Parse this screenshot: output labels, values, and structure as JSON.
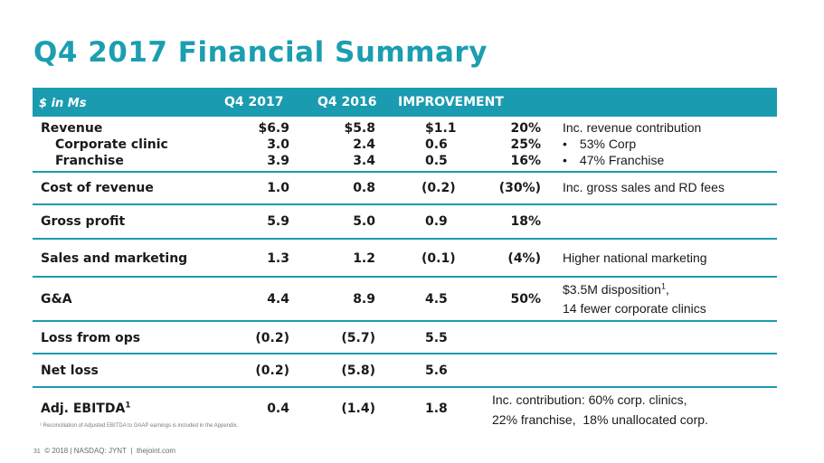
{
  "title": "Q4 2017 Financial Summary",
  "header": {
    "label": "$ in Ms",
    "q4_2017": "Q4 2017",
    "q4_2016": "Q4 2016",
    "improvement": "IMPROVEMENT"
  },
  "rows": {
    "revenue": {
      "label": "Revenue",
      "q17": "$6.9",
      "q16": "$5.8",
      "diff": "$1.1",
      "pct": "20%",
      "note": "Inc. revenue contribution"
    },
    "corporate": {
      "label": "Corporate clinic",
      "q17": "3.0",
      "q16": "2.4",
      "diff": "0.6",
      "pct": "25%",
      "note": "53% Corp"
    },
    "franchise": {
      "label": "Franchise",
      "q17": "3.9",
      "q16": "3.4",
      "diff": "0.5",
      "pct": "16%",
      "note": "47% Franchise"
    },
    "cost": {
      "label": "Cost of revenue",
      "q17": "1.0",
      "q16": "0.8",
      "diff": "(0.2)",
      "pct": "(30%)",
      "note": "Inc. gross sales and RD fees"
    },
    "gross": {
      "label": "Gross profit",
      "q17": "5.9",
      "q16": "5.0",
      "diff": "0.9",
      "pct": "18%"
    },
    "sales": {
      "label": "Sales and marketing",
      "q17": "1.3",
      "q16": "1.2",
      "diff": "(0.1)",
      "pct": "(4%)",
      "note": "Higher national marketing"
    },
    "ga": {
      "label": "G&A",
      "q17": "4.4",
      "q16": "8.9",
      "diff": "4.5",
      "pct": "50%",
      "note1": "$3.5M disposition",
      "note1_sup": "1",
      "note1_tail": ",",
      "note2": "14 fewer corporate clinics"
    },
    "loss_ops": {
      "label": "Loss from ops",
      "q17": "(0.2)",
      "q16": "(5.7)",
      "diff": "5.5"
    },
    "net_loss": {
      "label": "Net loss",
      "q17": "(0.2)",
      "q16": "(5.8)",
      "diff": "5.6"
    },
    "ebitda": {
      "label": "Adj. EBITDA",
      "label_sup": "1",
      "q17": "0.4",
      "q16": "(1.4)",
      "diff": "1.8",
      "note1": "Inc. contribution: 60% corp. clinics,",
      "note2": "22% franchise,  18% unallocated corp."
    }
  },
  "bullet": "•",
  "footnote": "¹ Reconciliation of Adjusted EBITDA to GAAP earnings is included in the Appendix.",
  "footer": {
    "page": "31",
    "copyright": "© 2018",
    "ticker": "NASDAQ: JYNT",
    "divider": "|",
    "site": "thejoint.com"
  }
}
